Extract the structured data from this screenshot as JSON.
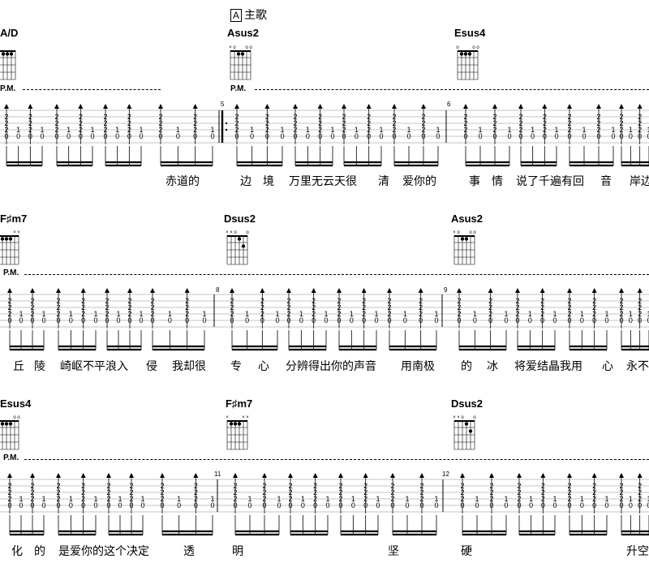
{
  "section": {
    "marker": "A",
    "title": "主歌"
  },
  "pm_label": "P.M.",
  "systems": [
    {
      "chords": [
        "A/D",
        "Asus2",
        "Esus4"
      ],
      "bar_numbers": [
        "5",
        "6"
      ],
      "lyrics": [
        "赤道的",
        "边",
        "境",
        "万里无云天很",
        "清",
        "爱你的",
        "事",
        "情",
        "说了千遍有回",
        "音",
        "岸边"
      ]
    },
    {
      "chords": [
        "F♯m7",
        "Dsus2",
        "Asus2"
      ],
      "bar_numbers": [
        "8",
        "9"
      ],
      "lyrics": [
        "丘",
        "陵",
        "崎岖不平浪入",
        "侵",
        "我却很",
        "专",
        "心",
        "分辨得出你的声音",
        "用南极",
        "的",
        "冰",
        "将爱结晶我用",
        "心",
        "永不"
      ]
    },
    {
      "chords": [
        "Esus4",
        "F♯m7",
        "Dsus2"
      ],
      "bar_numbers": [
        "11",
        "12"
      ],
      "lyrics": [
        "化",
        "的",
        "是爱你的这个决定",
        "透",
        "明",
        "坚",
        "硬",
        "升空"
      ]
    }
  ],
  "chord_marks": {
    "A/D": "",
    "Asus2": "xo  oo",
    "Esus4": "o   oo",
    "F♯m7": "x   xx",
    "Dsus2": "xxo  o"
  }
}
